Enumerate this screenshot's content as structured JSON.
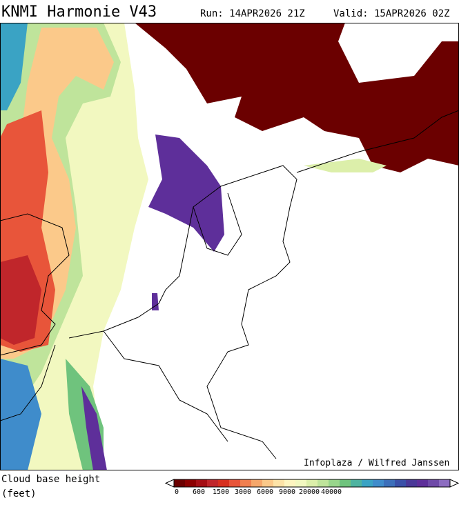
{
  "header": {
    "title": "KNMI Harmonie V43",
    "run": "Run: 14APR2026 21Z",
    "valid": "Valid: 15APR2026 02Z"
  },
  "map": {
    "credit": "Infoplaza / Wilfred Janssen"
  },
  "legend": {
    "label_line1": "Cloud base height",
    "label_line2": "(feet)",
    "ticks": [
      "0",
      "600",
      "1500",
      "3000",
      "6000",
      "9000",
      "20000",
      "40000"
    ],
    "colors": [
      "#6b0000",
      "#8b0000",
      "#a50f15",
      "#c0262b",
      "#d7301f",
      "#e8553a",
      "#f07f4f",
      "#f6a76b",
      "#fbc98a",
      "#fde3a7",
      "#fef5c0",
      "#f2f8c0",
      "#dcefaa",
      "#bfe49b",
      "#98d58b",
      "#6fc37d",
      "#4eb3a0",
      "#3aa3c4",
      "#3f8ccb",
      "#3c6fba",
      "#3a50a8",
      "#4a3898",
      "#5e2f9a",
      "#6f4aa8",
      "#8c6cc0"
    ]
  }
}
